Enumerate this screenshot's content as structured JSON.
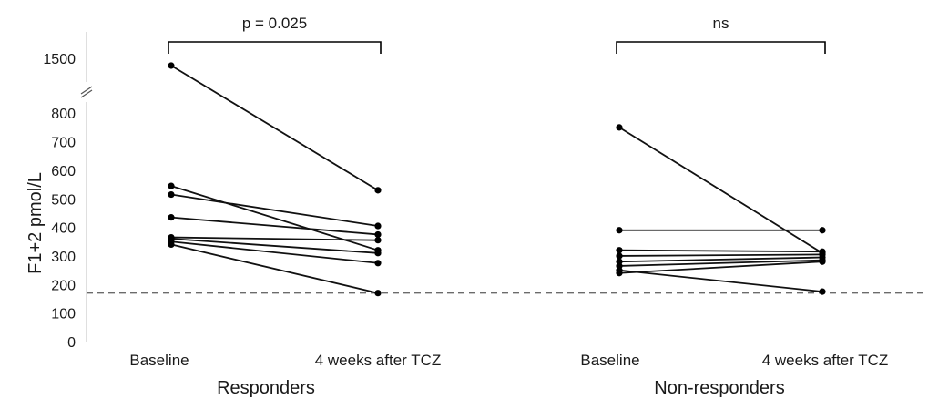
{
  "chart_data": {
    "type": "line",
    "ylabel": "F1+2 pmol/L",
    "y_ticks": [
      "0",
      "100",
      "200",
      "300",
      "400",
      "500",
      "600",
      "700",
      "800"
    ],
    "y_break_tick": "1500",
    "axis_break": true,
    "ylim": [
      0,
      850
    ],
    "reference_line": 170,
    "reference_line_style": "dashed",
    "grid": false,
    "groups": [
      {
        "name": "Responders",
        "categories": [
          "Baseline",
          "4 weeks after TCZ"
        ],
        "significance": "p = 0.025",
        "pairs": [
          [
            1500,
            530
          ],
          [
            545,
            320
          ],
          [
            515,
            405
          ],
          [
            435,
            375
          ],
          [
            365,
            355
          ],
          [
            360,
            310
          ],
          [
            350,
            275
          ],
          [
            340,
            170
          ]
        ]
      },
      {
        "name": "Non-responders",
        "categories": [
          "Baseline",
          "4 weeks after TCZ"
        ],
        "significance": "ns",
        "pairs": [
          [
            750,
            310
          ],
          [
            390,
            390
          ],
          [
            320,
            315
          ],
          [
            300,
            305
          ],
          [
            280,
            295
          ],
          [
            265,
            285
          ],
          [
            250,
            175
          ],
          [
            240,
            280
          ]
        ]
      }
    ]
  }
}
